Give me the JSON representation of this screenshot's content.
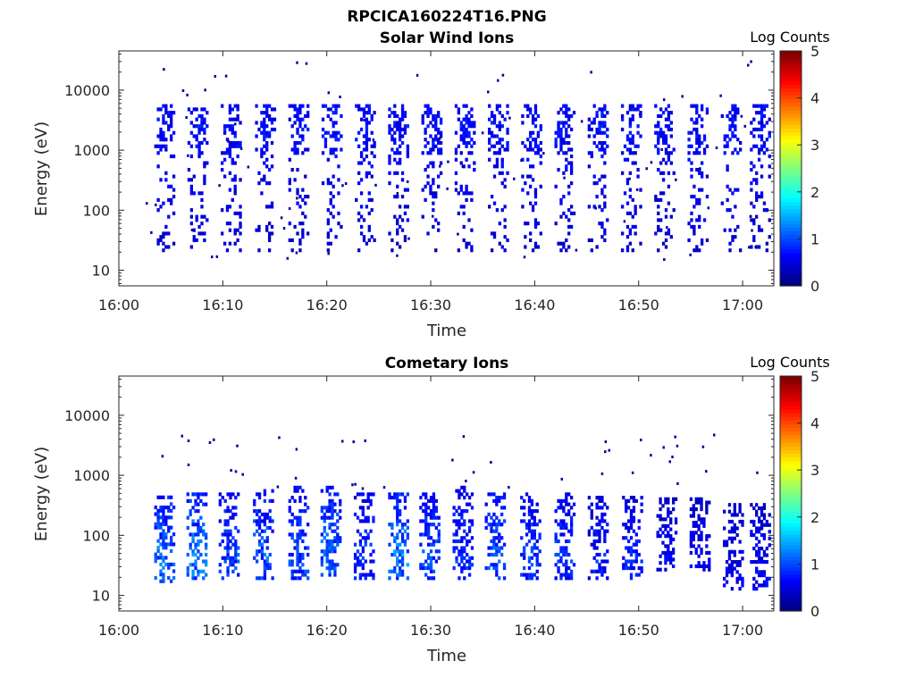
{
  "figure": {
    "title": "RPCICA160224T16.PNG"
  },
  "chart_data": [
    {
      "type": "heatmap",
      "title": "Solar Wind Ions",
      "xlabel": "Time",
      "ylabel": "Energy (eV)",
      "x_range": [
        "16:00",
        "17:03"
      ],
      "x_ticks": [
        "16:00",
        "16:10",
        "16:20",
        "16:30",
        "16:40",
        "16:50",
        "17:00"
      ],
      "y_scale": "log",
      "y_range": [
        5.5,
        45000
      ],
      "y_ticks": [
        "10",
        "100",
        "1000",
        "10000"
      ],
      "y_tick_values": [
        10,
        100,
        1000,
        10000
      ],
      "colorbar": {
        "label": "Log Counts",
        "ticks": [
          "0",
          "1",
          "2",
          "3",
          "4",
          "5"
        ],
        "min": 0,
        "max": 5,
        "colormap": "jet"
      },
      "bursts": [
        {
          "t": 4.3,
          "emin": 20,
          "emax": 5500,
          "core": 2200,
          "level": 0.7
        },
        {
          "t": 7.5,
          "emin": 20,
          "emax": 5500,
          "core": 2200,
          "level": 0.7
        },
        {
          "t": 10.7,
          "emin": 20,
          "emax": 5500,
          "core": 2200,
          "level": 0.7
        },
        {
          "t": 14.0,
          "emin": 20,
          "emax": 5500,
          "core": 2200,
          "level": 0.7
        },
        {
          "t": 17.2,
          "emin": 20,
          "emax": 5500,
          "core": 2200,
          "level": 0.7
        },
        {
          "t": 20.4,
          "emin": 20,
          "emax": 5500,
          "core": 2200,
          "level": 0.7
        },
        {
          "t": 23.6,
          "emin": 20,
          "emax": 5500,
          "core": 2200,
          "level": 0.7
        },
        {
          "t": 26.8,
          "emin": 20,
          "emax": 5500,
          "core": 2200,
          "level": 0.7
        },
        {
          "t": 30.0,
          "emin": 20,
          "emax": 5500,
          "core": 2200,
          "level": 0.7
        },
        {
          "t": 33.2,
          "emin": 20,
          "emax": 5500,
          "core": 2200,
          "level": 0.7
        },
        {
          "t": 36.4,
          "emin": 20,
          "emax": 5500,
          "core": 2200,
          "level": 0.7
        },
        {
          "t": 39.6,
          "emin": 20,
          "emax": 5500,
          "core": 2200,
          "level": 0.7
        },
        {
          "t": 42.8,
          "emin": 20,
          "emax": 5500,
          "core": 2200,
          "level": 0.7
        },
        {
          "t": 46.0,
          "emin": 20,
          "emax": 5500,
          "core": 2200,
          "level": 0.7
        },
        {
          "t": 49.2,
          "emin": 20,
          "emax": 5500,
          "core": 2200,
          "level": 0.7
        },
        {
          "t": 52.4,
          "emin": 20,
          "emax": 5500,
          "core": 2200,
          "level": 0.7
        },
        {
          "t": 55.6,
          "emin": 20,
          "emax": 5500,
          "core": 2200,
          "level": 0.7
        },
        {
          "t": 58.8,
          "emin": 20,
          "emax": 5500,
          "core": 2200,
          "level": 0.7
        },
        {
          "t": 61.6,
          "emin": 20,
          "emax": 5500,
          "core": 2200,
          "level": 0.7
        }
      ]
    },
    {
      "type": "heatmap",
      "title": "Cometary Ions",
      "xlabel": "Time",
      "ylabel": "Energy (eV)",
      "x_range": [
        "16:00",
        "17:03"
      ],
      "x_ticks": [
        "16:00",
        "16:10",
        "16:20",
        "16:30",
        "16:40",
        "16:50",
        "17:00"
      ],
      "y_scale": "log",
      "y_range": [
        5.5,
        45000
      ],
      "y_ticks": [
        "10",
        "100",
        "1000",
        "10000"
      ],
      "y_tick_values": [
        10,
        100,
        1000,
        10000
      ],
      "colorbar": {
        "label": "Log Counts",
        "ticks": [
          "0",
          "1",
          "2",
          "3",
          "4",
          "5"
        ],
        "min": 0,
        "max": 5,
        "colormap": "jet"
      },
      "bursts": [
        {
          "t": 4.3,
          "emin": 16,
          "emax": 450,
          "core": 40,
          "level": 1.2
        },
        {
          "t": 7.4,
          "emin": 18,
          "emax": 450,
          "core": 40,
          "level": 1.3
        },
        {
          "t": 10.5,
          "emin": 18,
          "emax": 450,
          "core": 40,
          "level": 1.0
        },
        {
          "t": 13.8,
          "emin": 18,
          "emax": 520,
          "core": 40,
          "level": 1.1
        },
        {
          "t": 17.2,
          "emin": 18,
          "emax": 600,
          "core": 40,
          "level": 1.0
        },
        {
          "t": 20.3,
          "emin": 18,
          "emax": 600,
          "core": 40,
          "level": 1.2
        },
        {
          "t": 23.5,
          "emin": 18,
          "emax": 480,
          "core": 40,
          "level": 0.9
        },
        {
          "t": 26.8,
          "emin": 18,
          "emax": 480,
          "core": 40,
          "level": 1.3
        },
        {
          "t": 29.8,
          "emin": 18,
          "emax": 480,
          "core": 40,
          "level": 1.0
        },
        {
          "t": 33.0,
          "emin": 18,
          "emax": 650,
          "core": 40,
          "level": 0.9
        },
        {
          "t": 36.1,
          "emin": 18,
          "emax": 480,
          "core": 40,
          "level": 1.1
        },
        {
          "t": 39.5,
          "emin": 18,
          "emax": 450,
          "core": 40,
          "level": 1.0
        },
        {
          "t": 42.8,
          "emin": 18,
          "emax": 450,
          "core": 40,
          "level": 0.9
        },
        {
          "t": 46.0,
          "emin": 18,
          "emax": 430,
          "core": 40,
          "level": 0.8
        },
        {
          "t": 49.3,
          "emin": 18,
          "emax": 430,
          "core": 40,
          "level": 0.8
        },
        {
          "t": 52.6,
          "emin": 25,
          "emax": 400,
          "core": 40,
          "level": 0.6
        },
        {
          "t": 55.8,
          "emin": 25,
          "emax": 400,
          "core": 40,
          "level": 0.6
        },
        {
          "t": 59.0,
          "emin": 12,
          "emax": 300,
          "core": 20,
          "level": 0.6
        },
        {
          "t": 61.6,
          "emin": 12,
          "emax": 300,
          "core": 20,
          "level": 0.7
        }
      ]
    }
  ]
}
